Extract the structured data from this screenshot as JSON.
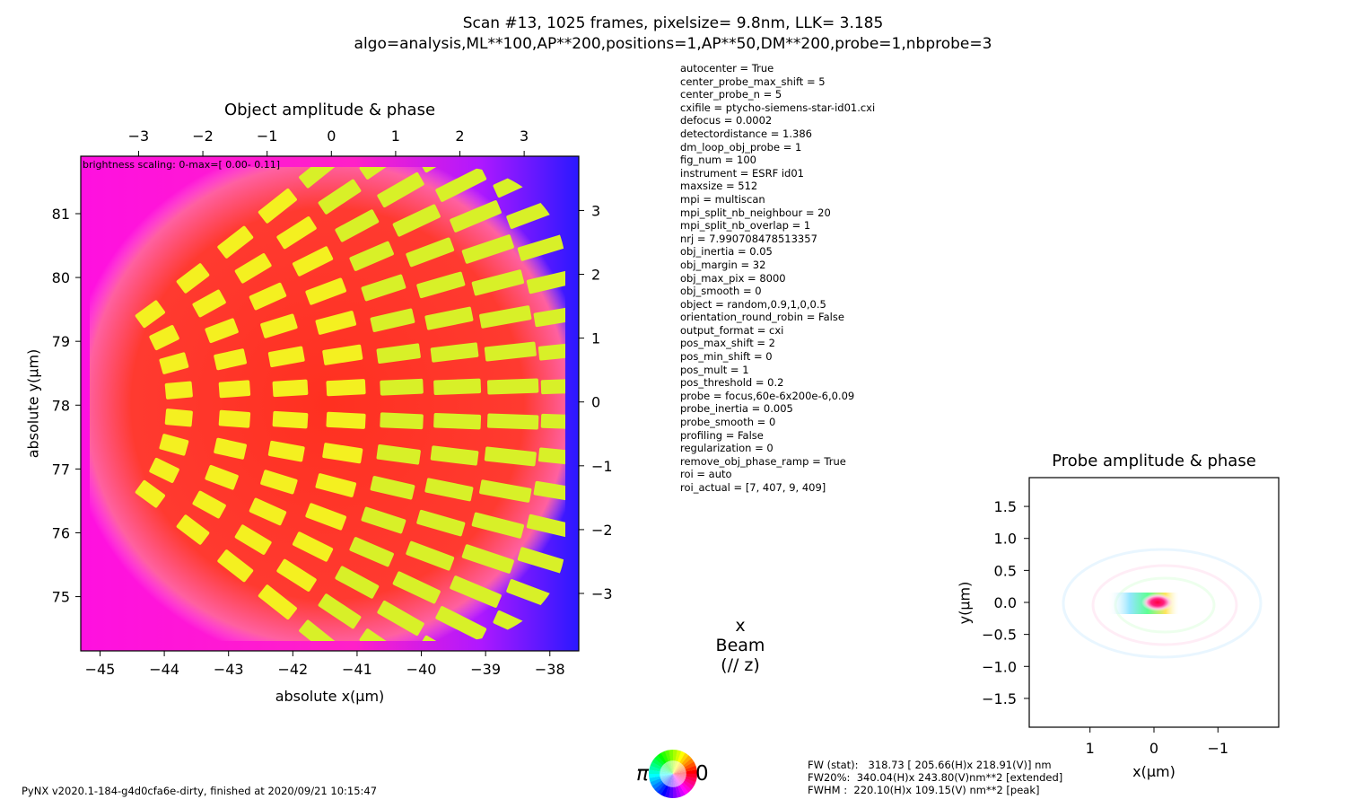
{
  "figure": {
    "title_line1": "Scan #13, 1025 frames, pixelsize=  9.8nm, LLK=   3.185",
    "title_line2": "algo=analysis,ML**100,AP**200,positions=1,AP**50,DM**200,probe=1,nbprobe=3",
    "footer_left": "PyNX v2020.1-184-g4d0cfa6e-dirty, finished at 2020/09/21 10:15:47",
    "beam_label_x": "x",
    "beam_label": "Beam",
    "beam_label_z": "(// z)",
    "phase_wheel": {
      "left_label": "π",
      "right_label": "0"
    },
    "fw_stat": "FW (stat):   318.73 [ 205.66(H)x 218.91(V)] nm",
    "fw20": "FW20%:  340.04(H)x 243.80(V)nm**2 [extended]",
    "fwhm": "FWHM :  220.10(H)x 109.15(V) nm**2 [peak]"
  },
  "parameters": [
    "autocenter = True",
    "center_probe_max_shift = 5",
    "center_probe_n = 5",
    "cxifile = ptycho-siemens-star-id01.cxi",
    "defocus = 0.0002",
    "detectordistance = 1.386",
    "dm_loop_obj_probe = 1",
    "fig_num = 100",
    "instrument = ESRF id01",
    "maxsize = 512",
    "mpi = multiscan",
    "mpi_split_nb_neighbour = 20",
    "mpi_split_nb_overlap = 1",
    "nrj = 7.990708478513357",
    "obj_inertia = 0.05",
    "obj_margin = 32",
    "obj_max_pix = 8000",
    "obj_smooth = 0",
    "object = random,0.9,1,0,0.5",
    "orientation_round_robin = False",
    "output_format = cxi",
    "pos_max_shift = 2",
    "pos_min_shift = 0",
    "pos_mult = 1",
    "pos_threshold = 0.2",
    "probe = focus,60e-6x200e-6,0.09",
    "probe_inertia = 0.005",
    "probe_smooth = 0",
    "profiling = False",
    "regularization = 0",
    "remove_obj_phase_ramp = True",
    "roi = auto",
    "roi_actual = [7, 407, 9, 409]"
  ],
  "chart_data": [
    {
      "type": "heatmap",
      "title": "Object amplitude & phase",
      "annotation": "brightness scaling: 0-max=[ 0.00- 0.11]",
      "xlabel": "absolute x(μm)",
      "ylabel": "absolute y(μm)",
      "xlim": [
        -45.3,
        -37.55
      ],
      "ylim": [
        74.15,
        81.9
      ],
      "xticks": [
        -45,
        -44,
        -43,
        -42,
        -41,
        -40,
        -39,
        -38
      ],
      "yticks": [
        75,
        76,
        77,
        78,
        79,
        80,
        81
      ],
      "top_xlim": [
        -3.9,
        3.85
      ],
      "top_xticks": [
        -3,
        -2,
        -1,
        0,
        1,
        2,
        3
      ],
      "right_ylim": [
        -3.9,
        3.85
      ],
      "right_yticks": [
        -3,
        -2,
        -1,
        0,
        1,
        2,
        3
      ],
      "colors": {
        "background": "#ff10e8",
        "edge_right": "#3a10ff",
        "fill": "#ff2a1a",
        "spokes": "#f0f020",
        "highlight": "#c8f020"
      }
    },
    {
      "type": "heatmap",
      "title": "Probe amplitude & phase",
      "xlabel": "x(μm)",
      "ylabel": "y(μm)",
      "xlim": [
        1.95,
        -1.95
      ],
      "ylim": [
        -1.95,
        1.95
      ],
      "xticks": [
        1,
        0,
        -1
      ],
      "yticks": [
        -1.5,
        -1.0,
        -0.5,
        0.0,
        0.5,
        1.0,
        1.5
      ],
      "xtick_labels": [
        "1",
        "0",
        "−1"
      ],
      "ytick_labels": [
        "−1.5",
        "−1.0",
        "−0.5",
        "0.0",
        "0.5",
        "1.0",
        "1.5"
      ]
    }
  ]
}
